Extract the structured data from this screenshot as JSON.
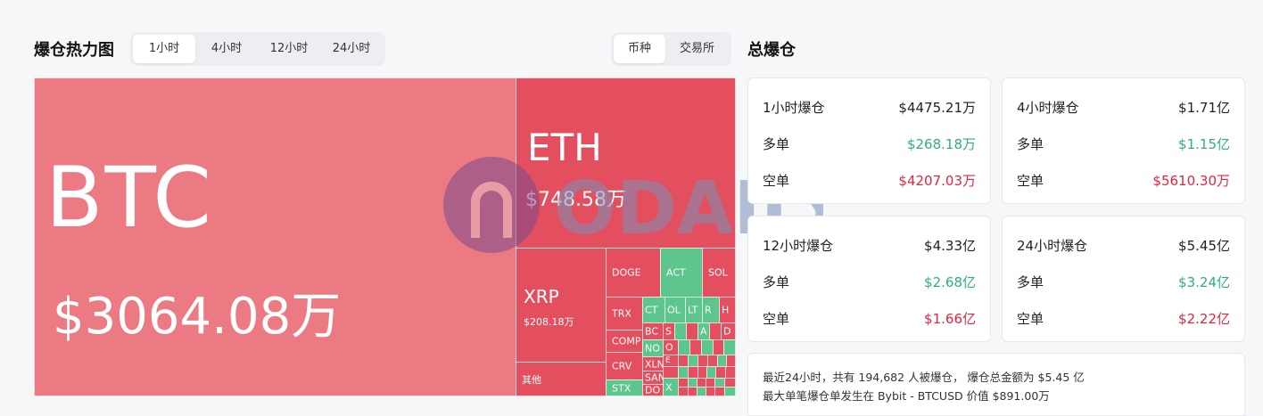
{
  "heatmap": {
    "title": "爆仓热力图",
    "time_tabs": [
      "1小时",
      "4小时",
      "12小时",
      "24小时"
    ],
    "active_time_tab": "1小时",
    "view_tabs": [
      "币种",
      "交易所"
    ],
    "active_view_tab": "币种",
    "tiles": {
      "btc": {
        "symbol": "BTC",
        "value": "$3064.08万"
      },
      "eth": {
        "symbol": "ETH",
        "value": "$748.58万"
      },
      "xrp": {
        "symbol": "XRP",
        "value": "$208.18万"
      },
      "other": {
        "symbol": "其他"
      },
      "doge": "DOGE",
      "act": "ACT",
      "sol": "SOL",
      "trx": "TRX",
      "comp": "COMP",
      "crv": "CRV",
      "stx": "STX",
      "ct": "CT",
      "ol": "OL",
      "lt": "LT",
      "r": "R",
      "h": "H",
      "bc": "BC",
      "no": "NO",
      "xl": "XLN",
      "sa": "SAN",
      "do": "DO",
      "s": "S",
      "a": "A",
      "d": "D",
      "o": "O",
      "e": "E",
      "x": "X"
    },
    "colors": {
      "red": "#e34f5e",
      "pink": "#ec7a83",
      "green": "#5cc68c"
    },
    "watermark": "ODAILY"
  },
  "totals": {
    "title": "总爆仓",
    "cards": [
      {
        "label": "1小时爆仓",
        "total": "$4475.21万",
        "long_label": "多单",
        "long": "$268.18万",
        "short_label": "空单",
        "short": "$4207.03万"
      },
      {
        "label": "4小时爆仓",
        "total": "$1.71亿",
        "long_label": "多单",
        "long": "$1.15亿",
        "short_label": "空单",
        "short": "$5610.30万"
      },
      {
        "label": "12小时爆仓",
        "total": "$4.33亿",
        "long_label": "多单",
        "long": "$2.68亿",
        "short_label": "空单",
        "short": "$1.66亿"
      },
      {
        "label": "24小时爆仓",
        "total": "$5.45亿",
        "long_label": "多单",
        "long": "$3.24亿",
        "short_label": "空单",
        "short": "$2.22亿"
      }
    ],
    "summary_line1": "最近24小时，共有 194,682 人被爆仓， 爆仓总金额为 $5.45 亿",
    "summary_line2": "最大单笔爆仓单发生在 Bybit - BTCUSD 价值 $891.00万"
  }
}
